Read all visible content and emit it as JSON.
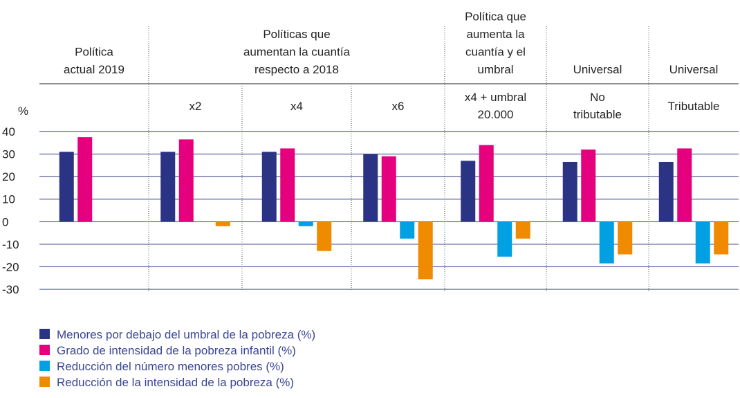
{
  "chart_data": {
    "type": "bar",
    "y_label": "%",
    "group_headers": [
      [
        "Política",
        "actual 2019"
      ],
      [
        "Políticas que",
        "aumentan la cuantía",
        "respecto a 2018"
      ],
      [
        "Política que",
        "aumenta la",
        "cuantía y el",
        "umbral"
      ],
      [
        "Universal"
      ],
      [
        "Universal"
      ]
    ],
    "categories": [
      null,
      [
        "x2"
      ],
      [
        "x4"
      ],
      [
        "x6"
      ],
      [
        "x4 + umbral",
        "20.000"
      ],
      [
        "No",
        "tributable"
      ],
      [
        "Tributable"
      ]
    ],
    "series": [
      {
        "name": "Menores por debajo del umbral de la pobreza (%)",
        "color": "#2b3484",
        "values": [
          31,
          31,
          31,
          30,
          27,
          26.5,
          26.5
        ]
      },
      {
        "name": "Grado de intensidad de la pobreza infantil (%)",
        "color": "#e5007e",
        "values": [
          37.5,
          36.5,
          32.5,
          29,
          34,
          32,
          32.5
        ]
      },
      {
        "name": "Reducción del número menores pobres (%)",
        "color": "#00a0e3",
        "values": [
          null,
          0,
          -2,
          -7.5,
          -15.5,
          -18.5,
          -18.5
        ]
      },
      {
        "name": "Reducción de la intensidad de la pobreza (%)",
        "color": "#f08a00",
        "values": [
          null,
          -2,
          -13,
          -25.5,
          -7.5,
          -14.5,
          -14.5
        ]
      }
    ],
    "ylim": [
      -30,
      40
    ],
    "yticks": [
      40,
      30,
      20,
      10,
      0,
      -10,
      -20,
      -30
    ],
    "grid": true
  }
}
